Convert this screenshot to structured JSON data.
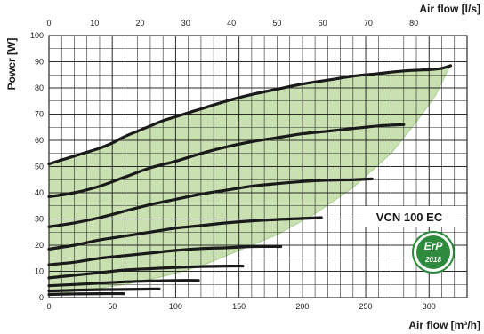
{
  "chart_data": {
    "type": "line",
    "xlabel": "Air flow [m³/h]",
    "x2label": "Air flow [l/s]",
    "ylabel": "Power [W]",
    "xlim": [
      0,
      330
    ],
    "x2lim": [
      0,
      91.667
    ],
    "ylim": [
      0,
      100
    ],
    "x_ticks": [
      "0",
      "50",
      "100",
      "150",
      "200",
      "250",
      "300"
    ],
    "x2_ticks": [
      "0",
      "10",
      "20",
      "30",
      "40",
      "50",
      "60",
      "70",
      "80"
    ],
    "y_ticks": [
      "0",
      "10",
      "20",
      "30",
      "40",
      "50",
      "60",
      "70",
      "80",
      "90",
      "100"
    ],
    "grid": true,
    "annotation": "VCN 100 EC",
    "badge": {
      "text": "ErP",
      "year": "2018"
    },
    "colors": {
      "area": "#c9e0b0",
      "area_edge": "#a9cc8e",
      "curve": "#1a1a1a",
      "grid": "#2a2a2a",
      "badge": "#2e8b3e"
    },
    "envelope": {
      "lower": [
        [
          0,
          1
        ],
        [
          30,
          3
        ],
        [
          60,
          5
        ],
        [
          90,
          8
        ],
        [
          120,
          12
        ],
        [
          150,
          18
        ],
        [
          180,
          24
        ],
        [
          210,
          32
        ],
        [
          240,
          42
        ],
        [
          270,
          55
        ],
        [
          290,
          67
        ],
        [
          305,
          77
        ],
        [
          315,
          87
        ]
      ]
    },
    "series": [
      {
        "x": [
          0,
          10,
          20,
          30,
          40,
          50,
          60,
          70,
          80,
          90,
          100,
          120,
          140,
          160,
          180,
          200,
          220,
          240,
          260,
          280,
          300,
          310,
          317
        ],
        "y": [
          51,
          52.5,
          54,
          55.5,
          57,
          59,
          61.5,
          63.5,
          65.5,
          67.5,
          69,
          72,
          75,
          77.5,
          79.5,
          81.5,
          83,
          84.5,
          85.5,
          86.5,
          87,
          87.5,
          88.5
        ]
      },
      {
        "x": [
          0,
          20,
          40,
          60,
          80,
          100,
          120,
          140,
          160,
          180,
          200,
          220,
          240,
          260,
          280
        ],
        "y": [
          38.5,
          40,
          42.5,
          46,
          49.5,
          52,
          55,
          57.5,
          59.5,
          61,
          62.5,
          63.5,
          64.5,
          65.5,
          66
        ]
      },
      {
        "x": [
          0,
          20,
          40,
          60,
          80,
          100,
          120,
          140,
          160,
          180,
          200,
          220,
          240,
          255
        ],
        "y": [
          27,
          28.5,
          30.5,
          33,
          35.5,
          37.5,
          39.5,
          41,
          42.5,
          43.5,
          44.3,
          44.8,
          45,
          45.3
        ]
      },
      {
        "x": [
          0,
          20,
          40,
          60,
          80,
          100,
          120,
          140,
          160,
          180,
          200,
          215
        ],
        "y": [
          18.5,
          20,
          22,
          23.5,
          25,
          26.5,
          27.5,
          28.5,
          29.3,
          29.8,
          30.2,
          30.5
        ]
      },
      {
        "x": [
          0,
          20,
          40,
          60,
          80,
          100,
          120,
          140,
          160,
          183
        ],
        "y": [
          12.5,
          13.5,
          15,
          16,
          17,
          18,
          18.7,
          19,
          19.5,
          19.5
        ]
      },
      {
        "x": [
          0,
          20,
          40,
          60,
          80,
          100,
          120,
          140,
          153
        ],
        "y": [
          7.5,
          8.5,
          9.5,
          10.5,
          11,
          11.5,
          11.8,
          12,
          12
        ]
      },
      {
        "x": [
          0,
          20,
          40,
          60,
          80,
          100,
          118
        ],
        "y": [
          4.5,
          5,
          5.5,
          6,
          6.3,
          6.5,
          6.5
        ]
      },
      {
        "x": [
          0,
          20,
          40,
          60,
          87
        ],
        "y": [
          2.5,
          2.8,
          3,
          3.1,
          3.3
        ]
      },
      {
        "x": [
          0,
          20,
          40,
          59
        ],
        "y": [
          1.2,
          1.4,
          1.5,
          1.5
        ]
      }
    ]
  }
}
